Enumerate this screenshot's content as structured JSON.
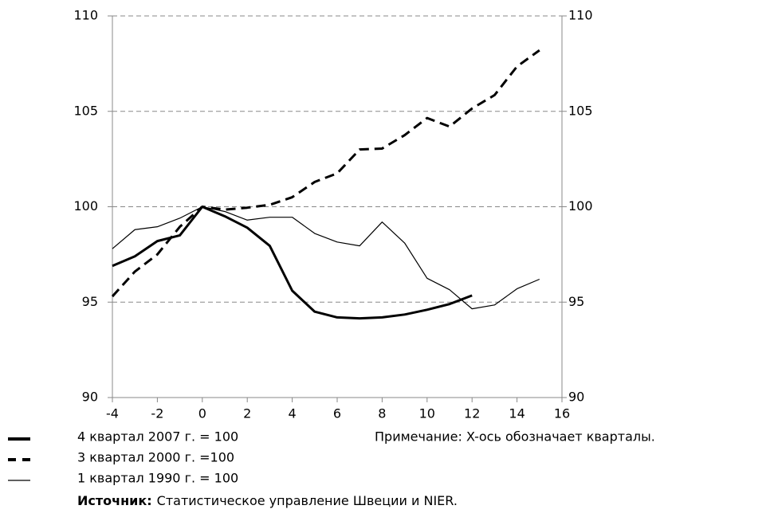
{
  "chart_data": {
    "type": "line",
    "x": [
      -4,
      -3,
      -2,
      -1,
      0,
      1,
      2,
      3,
      4,
      5,
      6,
      7,
      8,
      9,
      10,
      11,
      12,
      13,
      14,
      15
    ],
    "series": [
      {
        "name": "4 квартал 2007 г. = 100",
        "color": "#000000",
        "line_style": "solid",
        "line_width": 3,
        "values": [
          96.9,
          97.4,
          98.2,
          98.5,
          100,
          99.5,
          98.9,
          97.95,
          95.6,
          94.5,
          94.2,
          94.15,
          94.2,
          94.35,
          94.6,
          94.9,
          95.35,
          null,
          null,
          null
        ]
      },
      {
        "name": "3 квартал 2000 г. =100",
        "color": "#000000",
        "line_style": "dashed",
        "line_width": 3,
        "values": [
          95.3,
          96.6,
          97.5,
          98.95,
          100,
          99.85,
          99.95,
          100.1,
          100.5,
          101.3,
          101.75,
          103.0,
          103.05,
          103.75,
          104.65,
          104.2,
          105.15,
          105.85,
          107.35,
          108.2
        ]
      },
      {
        "name": "1 квартал 1990 г. = 100",
        "color": "#000000",
        "line_style": "solid",
        "line_width": 1.2,
        "values": [
          97.8,
          98.8,
          98.95,
          99.4,
          100,
          99.75,
          99.3,
          99.45,
          99.45,
          98.6,
          98.15,
          97.95,
          99.2,
          98.1,
          96.25,
          95.65,
          94.65,
          94.85,
          95.7,
          96.2
        ]
      }
    ],
    "xlim": [
      -4,
      16
    ],
    "xticks": [
      -4,
      -2,
      0,
      2,
      4,
      6,
      8,
      10,
      12,
      14,
      16
    ],
    "ylim": [
      90,
      110
    ],
    "yticks": [
      90,
      95,
      100,
      105,
      110
    ],
    "y2lim": [
      90,
      110
    ],
    "y2ticks": [
      90,
      95,
      100,
      105,
      110
    ],
    "grid": true,
    "note": "Примечание: X-ось обозначает кварталы.",
    "source_label": "Источник:",
    "source_text": "Статистическое управление Швеции и NIER."
  }
}
